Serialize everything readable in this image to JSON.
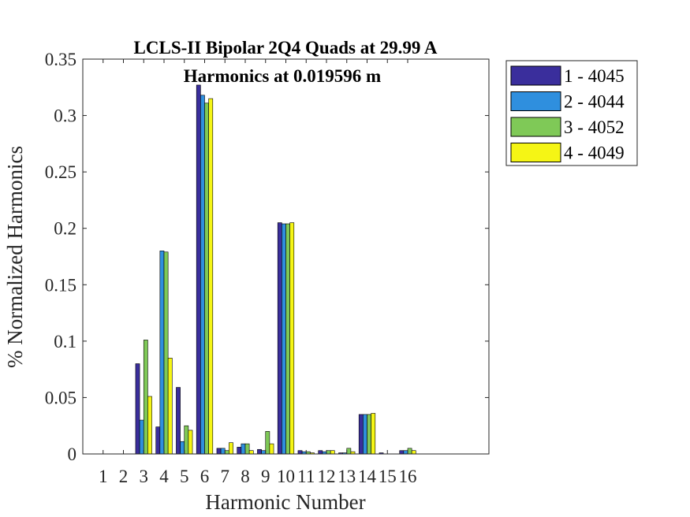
{
  "chart_data": {
    "type": "bar",
    "title": "LCLS-II Bipolar 2Q4 Quads at 29.99 A",
    "subtitle": "Harmonics at 0.019596 m",
    "xlabel": "Harmonic Number",
    "ylabel": "% Normalized Harmonics",
    "xlim": [
      0,
      20
    ],
    "ylim": [
      0,
      0.35
    ],
    "yticks": [
      0,
      0.05,
      0.1,
      0.15,
      0.2,
      0.25,
      0.3,
      0.35
    ],
    "ytick_labels": [
      "0",
      "0.05",
      "0.1",
      "0.15",
      "0.2",
      "0.25",
      "0.3",
      "0.35"
    ],
    "categories": [
      "1",
      "2",
      "3",
      "4",
      "5",
      "6",
      "7",
      "8",
      "9",
      "10",
      "11",
      "12",
      "13",
      "14",
      "15",
      "16"
    ],
    "grid": false,
    "legend_position": "outside-top-right",
    "series": [
      {
        "name": "1 - 4045",
        "color": "#3a2e9c",
        "values": [
          0,
          0,
          0.08,
          0.024,
          0.059,
          0.327,
          0.005,
          0.006,
          0.004,
          0.205,
          0.003,
          0.003,
          0.001,
          0.035,
          0.001,
          0.003
        ]
      },
      {
        "name": "2 - 4044",
        "color": "#2f8fde",
        "values": [
          0,
          0,
          0.03,
          0.18,
          0.011,
          0.318,
          0.005,
          0.009,
          0.003,
          0.204,
          0.002,
          0.002,
          0.001,
          0.035,
          0.0,
          0.003
        ]
      },
      {
        "name": "3 - 4052",
        "color": "#7fc957",
        "values": [
          0,
          0,
          0.101,
          0.179,
          0.025,
          0.311,
          0.003,
          0.009,
          0.02,
          0.204,
          0.002,
          0.003,
          0.005,
          0.035,
          0.0,
          0.005
        ]
      },
      {
        "name": "4 - 4049",
        "color": "#f5f515",
        "values": [
          0,
          0,
          0.051,
          0.085,
          0.021,
          0.315,
          0.01,
          0.003,
          0.009,
          0.205,
          0.001,
          0.003,
          0.002,
          0.036,
          0.0,
          0.003
        ]
      }
    ]
  }
}
